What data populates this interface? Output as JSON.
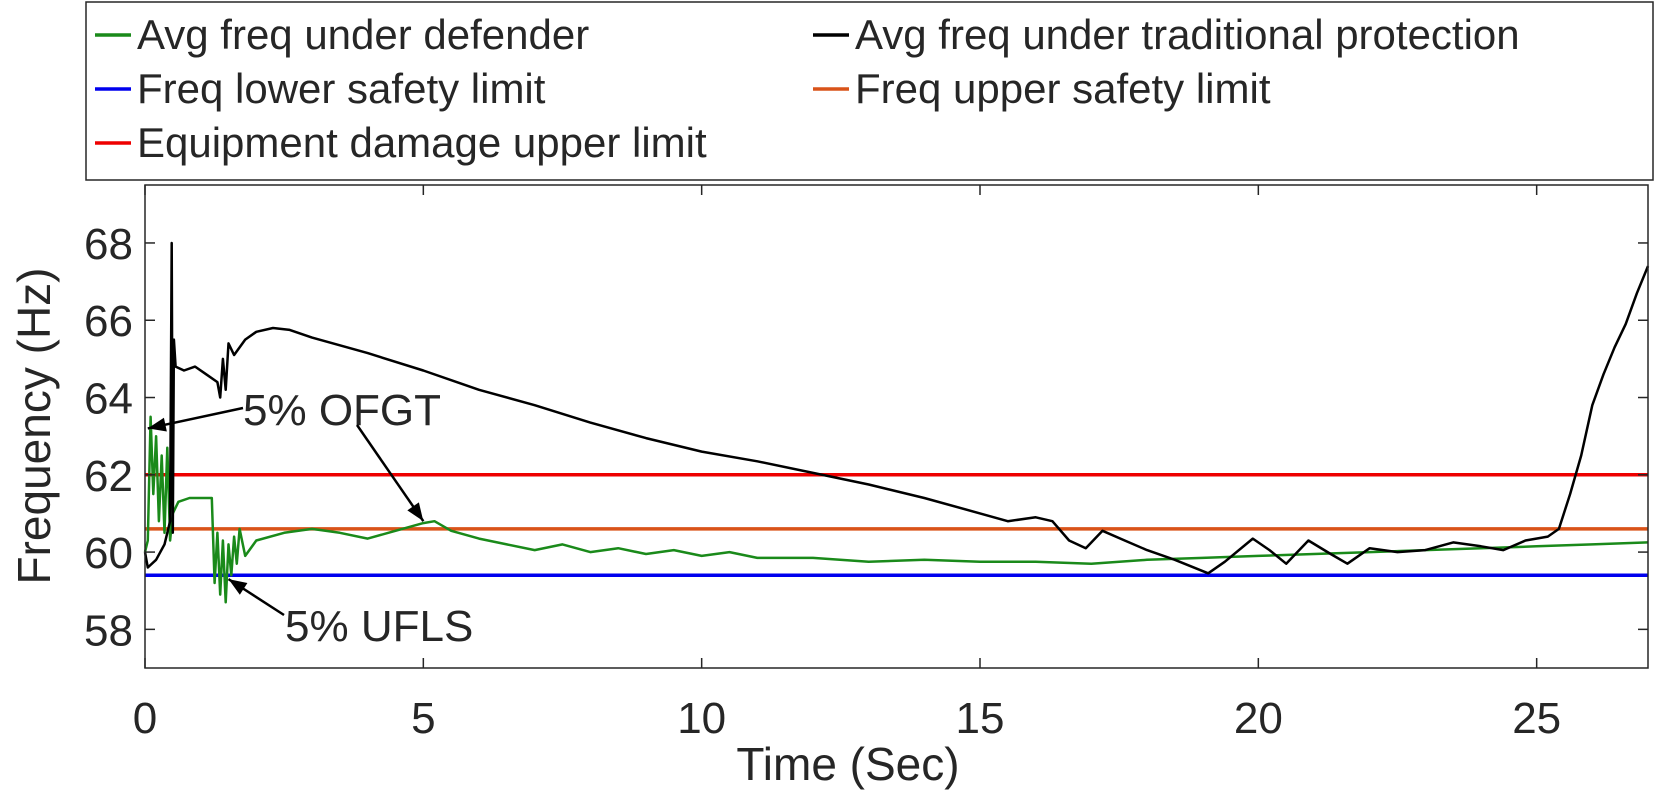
{
  "chart_data": {
    "type": "line",
    "xlabel": "Time (Sec)",
    "ylabel": "Frequency (Hz)",
    "xlim": [
      0,
      27
    ],
    "ylim": [
      57,
      69.5
    ],
    "xticks": [
      0,
      5,
      10,
      15,
      20,
      25
    ],
    "yticks": [
      58,
      60,
      62,
      64,
      66,
      68
    ],
    "grid": false,
    "legend": {
      "placement": "top",
      "columns": 2
    },
    "series": [
      {
        "name": "Avg freq under defender",
        "color": "#1a8a1a",
        "points": [
          [
            0,
            60.0
          ],
          [
            0.05,
            60.3
          ],
          [
            0.1,
            63.5
          ],
          [
            0.15,
            61.5
          ],
          [
            0.2,
            63.0
          ],
          [
            0.25,
            60.8
          ],
          [
            0.3,
            62.5
          ],
          [
            0.35,
            60.5
          ],
          [
            0.4,
            62.7
          ],
          [
            0.45,
            60.3
          ],
          [
            0.5,
            61.0
          ],
          [
            0.6,
            61.3
          ],
          [
            0.8,
            61.4
          ],
          [
            1.0,
            61.4
          ],
          [
            1.2,
            61.4
          ],
          [
            1.25,
            59.2
          ],
          [
            1.3,
            60.5
          ],
          [
            1.35,
            58.9
          ],
          [
            1.4,
            60.3
          ],
          [
            1.45,
            58.7
          ],
          [
            1.5,
            60.2
          ],
          [
            1.55,
            59.4
          ],
          [
            1.6,
            60.4
          ],
          [
            1.65,
            59.7
          ],
          [
            1.7,
            60.6
          ],
          [
            1.8,
            59.9
          ],
          [
            2.0,
            60.3
          ],
          [
            2.5,
            60.5
          ],
          [
            3.0,
            60.6
          ],
          [
            3.5,
            60.5
          ],
          [
            4.0,
            60.35
          ],
          [
            4.5,
            60.55
          ],
          [
            5.0,
            60.75
          ],
          [
            5.2,
            60.8
          ],
          [
            5.5,
            60.55
          ],
          [
            6.0,
            60.35
          ],
          [
            6.5,
            60.2
          ],
          [
            7.0,
            60.05
          ],
          [
            7.5,
            60.2
          ],
          [
            8.0,
            60.0
          ],
          [
            8.5,
            60.1
          ],
          [
            9.0,
            59.95
          ],
          [
            9.5,
            60.05
          ],
          [
            10.0,
            59.9
          ],
          [
            10.5,
            60.0
          ],
          [
            11.0,
            59.85
          ],
          [
            12.0,
            59.85
          ],
          [
            13.0,
            59.75
          ],
          [
            14.0,
            59.8
          ],
          [
            15.0,
            59.75
          ],
          [
            16.0,
            59.75
          ],
          [
            17.0,
            59.7
          ],
          [
            18.0,
            59.8
          ],
          [
            19.0,
            59.85
          ],
          [
            20.0,
            59.9
          ],
          [
            21.0,
            59.95
          ],
          [
            22.0,
            60.0
          ],
          [
            23.0,
            60.05
          ],
          [
            24.0,
            60.1
          ],
          [
            25.0,
            60.15
          ],
          [
            26.0,
            60.2
          ],
          [
            27.0,
            60.25
          ]
        ]
      },
      {
        "name": "Avg freq under traditional protection",
        "color": "#000000",
        "points": [
          [
            0,
            60.0
          ],
          [
            0.05,
            59.6
          ],
          [
            0.2,
            59.8
          ],
          [
            0.35,
            60.2
          ],
          [
            0.45,
            60.8
          ],
          [
            0.48,
            68.0
          ],
          [
            0.5,
            60.5
          ],
          [
            0.52,
            65.5
          ],
          [
            0.55,
            64.8
          ],
          [
            0.7,
            64.7
          ],
          [
            0.9,
            64.8
          ],
          [
            1.1,
            64.6
          ],
          [
            1.3,
            64.4
          ],
          [
            1.35,
            64.0
          ],
          [
            1.4,
            65.0
          ],
          [
            1.45,
            64.2
          ],
          [
            1.5,
            65.4
          ],
          [
            1.6,
            65.1
          ],
          [
            1.8,
            65.5
          ],
          [
            2.0,
            65.7
          ],
          [
            2.3,
            65.8
          ],
          [
            2.6,
            65.75
          ],
          [
            3.0,
            65.55
          ],
          [
            4.0,
            65.15
          ],
          [
            5.0,
            64.7
          ],
          [
            6.0,
            64.2
          ],
          [
            7.0,
            63.8
          ],
          [
            8.0,
            63.35
          ],
          [
            9.0,
            62.95
          ],
          [
            10.0,
            62.6
          ],
          [
            11.0,
            62.35
          ],
          [
            12.0,
            62.05
          ],
          [
            13.0,
            61.75
          ],
          [
            14.0,
            61.4
          ],
          [
            15.0,
            61.0
          ],
          [
            15.5,
            60.8
          ],
          [
            16.0,
            60.9
          ],
          [
            16.3,
            60.8
          ],
          [
            16.6,
            60.3
          ],
          [
            16.9,
            60.1
          ],
          [
            17.2,
            60.55
          ],
          [
            17.6,
            60.3
          ],
          [
            18.0,
            60.05
          ],
          [
            18.5,
            59.8
          ],
          [
            19.1,
            59.45
          ],
          [
            19.4,
            59.75
          ],
          [
            19.9,
            60.35
          ],
          [
            20.2,
            60.05
          ],
          [
            20.5,
            59.7
          ],
          [
            20.9,
            60.3
          ],
          [
            21.3,
            59.95
          ],
          [
            21.6,
            59.7
          ],
          [
            22.0,
            60.1
          ],
          [
            22.5,
            60.0
          ],
          [
            23.0,
            60.05
          ],
          [
            23.5,
            60.25
          ],
          [
            24.0,
            60.15
          ],
          [
            24.4,
            60.05
          ],
          [
            24.8,
            60.3
          ],
          [
            25.2,
            60.4
          ],
          [
            25.4,
            60.6
          ],
          [
            25.6,
            61.5
          ],
          [
            25.8,
            62.5
          ],
          [
            26.0,
            63.8
          ],
          [
            26.2,
            64.6
          ],
          [
            26.4,
            65.3
          ],
          [
            26.6,
            65.9
          ],
          [
            26.8,
            66.7
          ],
          [
            27.0,
            67.4
          ]
        ]
      },
      {
        "name": "Freq lower safety limit",
        "color": "#0000ee",
        "points": [
          [
            0,
            59.4
          ],
          [
            27,
            59.4
          ]
        ]
      },
      {
        "name": "Freq upper safety limit",
        "color": "#d95319",
        "points": [
          [
            0,
            60.6
          ],
          [
            27,
            60.6
          ]
        ]
      },
      {
        "name": "Equipment damage upper limit",
        "color": "#ee0000",
        "points": [
          [
            0,
            62.0
          ],
          [
            27,
            62.0
          ]
        ]
      }
    ],
    "annotations": [
      {
        "text": "5% OFGT",
        "arrows_to": [
          [
            0.05,
            63.2
          ],
          [
            5.0,
            60.8
          ]
        ]
      },
      {
        "text": "5% UFLS",
        "arrows_to": [
          [
            1.5,
            59.3
          ]
        ]
      }
    ]
  }
}
